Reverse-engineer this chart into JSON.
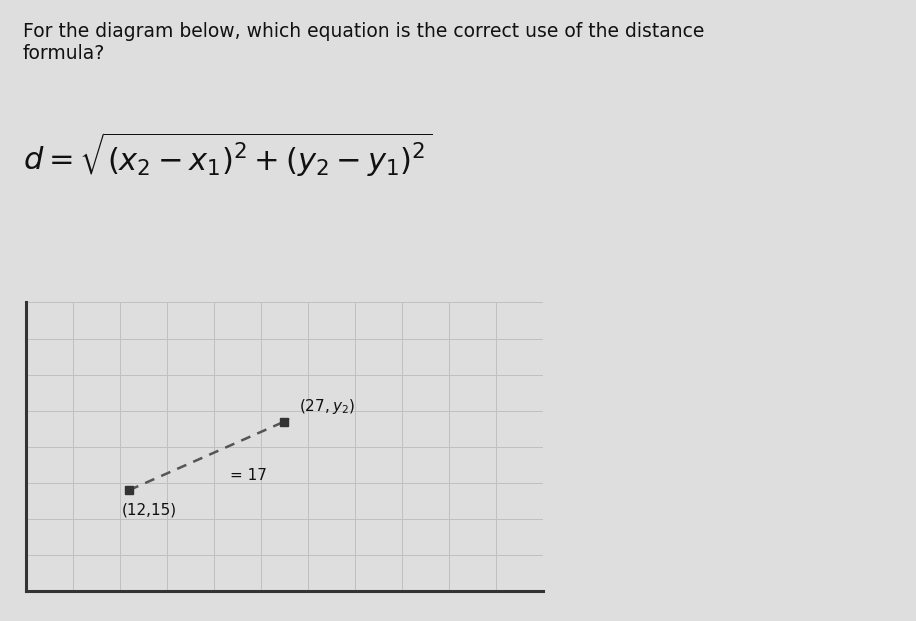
{
  "background_color": "#dedede",
  "question_text": "For the diagram below, which equation is the correct use of the distance\nformula?",
  "formula": "$d = \\sqrt{(x_2 - x_1)^2 + (y_2 - y_1)^2}$",
  "label1": "(12,15)",
  "label2": "$(27, y_2)$",
  "distance_label": "= 17",
  "grid_color": "#c0c0c0",
  "axis_color": "#333333",
  "dot_color": "#333333",
  "dash_color": "#555555",
  "question_fontsize": 13.5,
  "formula_fontsize": 22,
  "label_fontsize": 11,
  "text_color": "#111111",
  "p1": [
    2.2,
    2.8
  ],
  "p2": [
    5.5,
    4.7
  ],
  "grid_cols": 11,
  "grid_rows": 8
}
